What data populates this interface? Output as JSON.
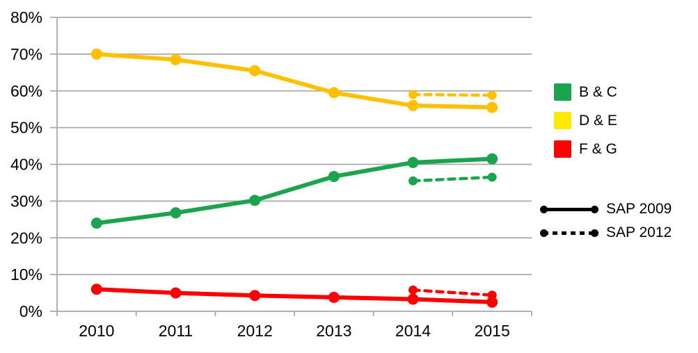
{
  "chart_data": {
    "type": "line",
    "x": [
      "2010",
      "2011",
      "2012",
      "2013",
      "2014",
      "2015"
    ],
    "yticks": [
      "0%",
      "10%",
      "20%",
      "30%",
      "40%",
      "50%",
      "60%",
      "70%",
      "80%"
    ],
    "ylim": [
      0,
      80
    ],
    "ytick_step": 10,
    "ytick_format": "percent",
    "grid": "horizontal",
    "legend_position": "right",
    "series": [
      {
        "name": "D & E",
        "survey": "SAP 2009",
        "style": "solid",
        "color": "#FFC000",
        "values": [
          70.0,
          68.5,
          65.5,
          59.5,
          56.0,
          55.5
        ]
      },
      {
        "name": "D & E",
        "survey": "SAP 2012",
        "style": "dashed",
        "color": "#FFC000",
        "values": [
          null,
          null,
          null,
          null,
          59.0,
          58.8
        ]
      },
      {
        "name": "B & C",
        "survey": "SAP 2009",
        "style": "solid",
        "color": "#1CA34D",
        "values": [
          24.0,
          26.8,
          30.2,
          36.7,
          40.5,
          41.5
        ]
      },
      {
        "name": "B & C",
        "survey": "SAP 2012",
        "style": "dashed",
        "color": "#1CA34D",
        "values": [
          null,
          null,
          null,
          null,
          35.5,
          36.5
        ]
      },
      {
        "name": "F & G",
        "survey": "SAP 2009",
        "style": "solid",
        "color": "#FE0000",
        "values": [
          6.0,
          5.0,
          4.3,
          3.8,
          3.3,
          2.5
        ]
      },
      {
        "name": "F & G",
        "survey": "SAP 2012",
        "style": "dashed",
        "color": "#FE0000",
        "values": [
          null,
          null,
          null,
          null,
          5.8,
          4.4
        ]
      }
    ]
  },
  "legend": {
    "series": [
      {
        "label": "B & C",
        "color": "#1CA34D"
      },
      {
        "label": "D & E",
        "color": "#FFE900"
      },
      {
        "label": "F & G",
        "color": "#FE0000"
      }
    ],
    "styles": [
      {
        "label": "SAP 2009",
        "style": "solid"
      },
      {
        "label": "SAP 2012",
        "style": "dotted"
      }
    ]
  },
  "colors": {
    "gridline": "#A9A9A9",
    "axis": "#A9A9A9",
    "text": "#000000",
    "background": "#FFFFFF"
  }
}
